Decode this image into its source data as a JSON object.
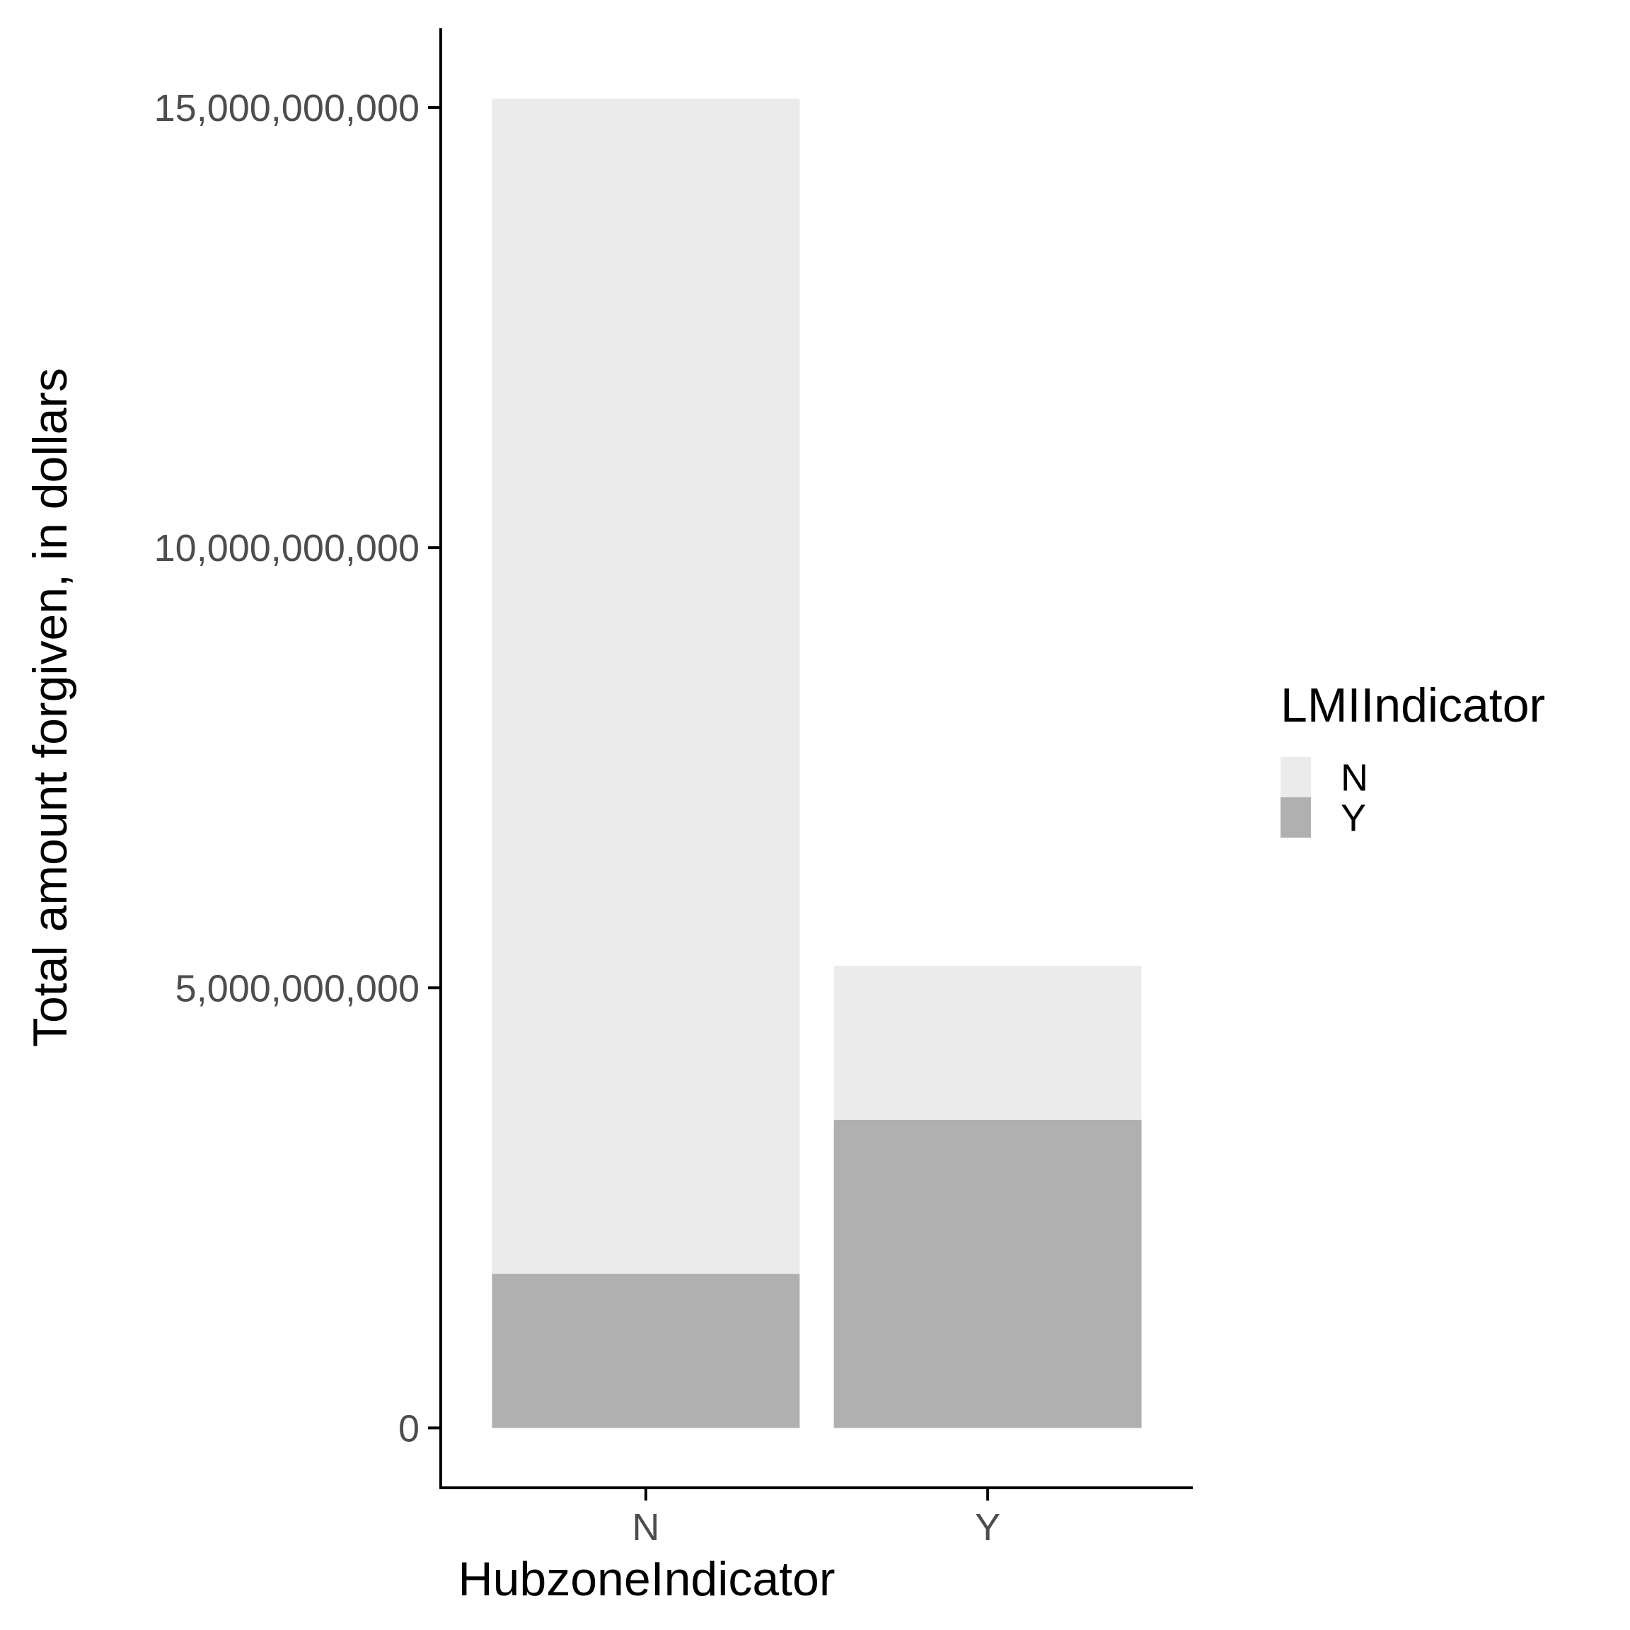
{
  "chart_data": {
    "type": "bar",
    "stacked": true,
    "categories": [
      "N",
      "Y"
    ],
    "series": [
      {
        "name": "Y",
        "values": [
          1750000000,
          3500000000
        ],
        "color": "#b0b0b0"
      },
      {
        "name": "N",
        "values": [
          13350000000,
          1750000000
        ],
        "color": "#ebebeb"
      }
    ],
    "title": "",
    "xlabel": "HubzoneIndicator",
    "ylabel": "Total amount forgiven, in dollars",
    "ylim": [
      -680000000,
      15900000000
    ],
    "yticks": [
      0,
      5000000000,
      10000000000,
      15000000000
    ],
    "ytick_labels": [
      "0",
      "5,000,000,000",
      "10,000,000,000",
      "15,000,000,000"
    ],
    "grid": false,
    "legend": {
      "title": "LMIIndicator",
      "placement": "right",
      "entries": [
        {
          "label": "N",
          "color": "#ebebeb"
        },
        {
          "label": "Y",
          "color": "#b0b0b0"
        }
      ]
    },
    "axis_color": "#000000",
    "tick_label_color": "#4d4d4d"
  }
}
